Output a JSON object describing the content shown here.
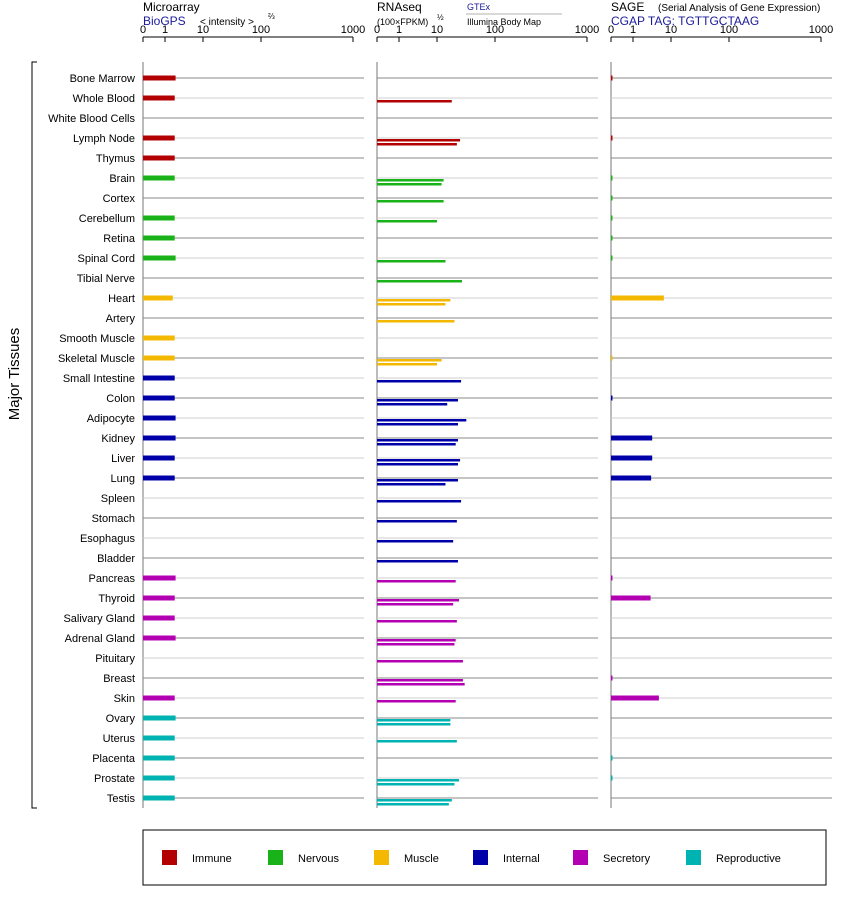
{
  "chart_data": {
    "type": "bar",
    "ylabel": "Major Tissues",
    "tissues": [
      "Bone Marrow",
      "Whole Blood",
      "White Blood Cells",
      "Lymph Node",
      "Thymus",
      "Brain",
      "Cortex",
      "Cerebellum",
      "Retina",
      "Spinal Cord",
      "Tibial Nerve",
      "Heart",
      "Artery",
      "Smooth Muscle",
      "Skeletal Muscle",
      "Small Intestine",
      "Colon",
      "Adipocyte",
      "Kidney",
      "Liver",
      "Lung",
      "Spleen",
      "Stomach",
      "Esophagus",
      "Bladder",
      "Pancreas",
      "Thyroid",
      "Salivary Gland",
      "Adrenal Gland",
      "Pituitary",
      "Breast",
      "Skin",
      "Ovary",
      "Uterus",
      "Placenta",
      "Prostate",
      "Testis"
    ],
    "groups": [
      "immune",
      "immune",
      "immune",
      "immune",
      "immune",
      "nervous",
      "nervous",
      "nervous",
      "nervous",
      "nervous",
      "nervous",
      "muscle",
      "muscle",
      "muscle",
      "muscle",
      "internal",
      "internal",
      "internal",
      "internal",
      "internal",
      "internal",
      "internal",
      "internal",
      "internal",
      "internal",
      "secretory",
      "secretory",
      "secretory",
      "secretory",
      "secretory",
      "secretory",
      "secretory",
      "reproductive",
      "reproductive",
      "reproductive",
      "reproductive",
      "reproductive"
    ],
    "colors": {
      "immune": "#b30000",
      "nervous": "#19b319",
      "muscle": "#f5b800",
      "internal": "#0000a8",
      "secretory": "#b300b3",
      "reproductive": "#00b3b3"
    },
    "axis_ticks": [
      "0",
      "1",
      "10",
      "100",
      "1000"
    ],
    "xlim": [
      0,
      1000
    ],
    "panels": [
      {
        "title": "Microarray",
        "source": "BioGPS",
        "unit_label": "< intensity >",
        "unit_exp": "⅔",
        "values": [
          [
            1.9
          ],
          [
            1.8
          ],
          [],
          [
            1.8
          ],
          [
            1.8
          ],
          [
            1.8
          ],
          [],
          [
            1.8
          ],
          [
            1.8
          ],
          [
            1.9
          ],
          [],
          [
            1.6
          ],
          [],
          [
            1.8
          ],
          [
            1.8
          ],
          [
            1.8
          ],
          [
            1.8
          ],
          [
            1.9
          ],
          [
            1.9
          ],
          [
            1.8
          ],
          [
            1.8
          ],
          [],
          [],
          [],
          [],
          [
            1.9
          ],
          [
            1.8
          ],
          [
            1.8
          ],
          [
            1.9
          ],
          [],
          [],
          [
            1.8
          ],
          [
            1.9
          ],
          [
            1.8
          ],
          [
            1.8
          ],
          [
            1.8
          ],
          [
            1.8
          ]
        ]
      },
      {
        "title": "RNAseq",
        "unit_label": "(100×FPKM)",
        "unit_exp": "½",
        "source_top": "GTEx",
        "source_bottom": "Illumina Body Map",
        "values": [
          [],
          [
            18
          ],
          [],
          [
            25,
            22
          ],
          [],
          [
            13,
            12
          ],
          [
            13
          ],
          [
            10
          ],
          [],
          [
            14
          ],
          [
            27
          ],
          [
            17,
            14
          ],
          [
            20
          ],
          [],
          [
            12,
            10
          ],
          [
            26
          ],
          [
            23,
            15
          ],
          [
            32,
            23
          ],
          [
            23,
            21
          ],
          [
            25,
            23
          ],
          [
            23,
            14
          ],
          [
            26
          ],
          [
            22
          ],
          [
            19
          ],
          [
            23
          ],
          [
            21
          ],
          [
            24,
            19
          ],
          [
            22
          ],
          [
            21,
            20
          ],
          [
            28
          ],
          [
            28,
            30
          ],
          [
            21
          ],
          [
            17,
            17
          ],
          [
            22
          ],
          [],
          [
            24,
            20
          ],
          [
            18,
            16
          ]
        ]
      },
      {
        "title": "SAGE",
        "subtitle": "(Serial Analysis of Gene Expression)",
        "tag": "CGAP TAG: TGTTGCTAAG",
        "values": [
          [
            0.05
          ],
          [],
          [],
          [
            0.05
          ],
          [],
          [
            0.05
          ],
          [
            0.05
          ],
          [
            0.05
          ],
          [
            0.05
          ],
          [
            0.05
          ],
          [],
          [
            6.5
          ],
          [],
          [],
          [
            0.05
          ],
          [],
          [
            0.05
          ],
          [],
          [
            3.2
          ],
          [
            3.2
          ],
          [
            3.0
          ],
          [],
          [],
          [],
          [],
          [
            0.05
          ],
          [
            2.9
          ],
          [],
          [],
          [],
          [
            0.05
          ],
          [
            4.8
          ],
          [],
          [],
          [
            0.05
          ],
          [
            0.05
          ],
          []
        ]
      }
    ],
    "legend": [
      "Immune",
      "Nervous",
      "Muscle",
      "Internal",
      "Secretory",
      "Reproductive"
    ]
  }
}
